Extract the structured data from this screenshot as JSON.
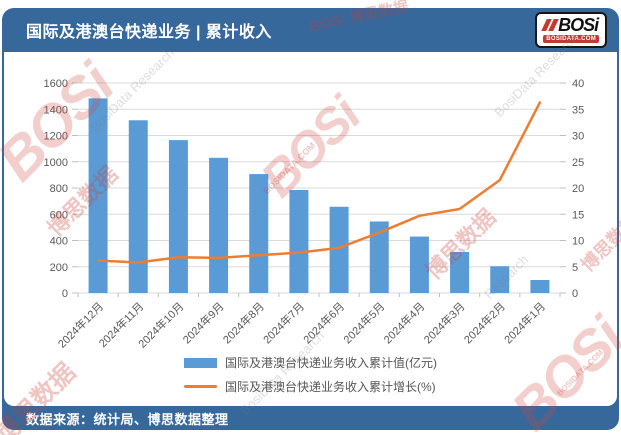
{
  "header": {
    "title": "国际及港澳台快递业务 | 累计收入",
    "logo_text": "BOSi",
    "logo_subtext": "BOSIDATA.COM"
  },
  "legend": {
    "bar_label": "国际及港澳台快递业务收入累计值(亿元)",
    "line_label": "国际及港澳台快递业务收入累计增长(%)"
  },
  "footer": {
    "source": "数据来源：统计局、博思数据整理"
  },
  "colors": {
    "bar": "#5B9BD5",
    "line": "#ED7D31",
    "frame_blue": "#36689B",
    "gridline": "#D9D9D9",
    "tick": "#BFBFBF",
    "axis_text": "#595959"
  },
  "watermarks": [
    "BOSi",
    "博思数据",
    "BosiData Research",
    "BOSi",
    "BOSIDATA.COM",
    "BosiData Research",
    "博思数据",
    "Research",
    "BOSi",
    "BOSIDATA.COM",
    "博思数据",
    "BosiData Research",
    "BOSi 博思数据",
    "博思数据"
  ],
  "chart_data": {
    "type": "bar",
    "subtype": "bar+line combo, dual axis",
    "title": "国际及港澳台快递业务 | 累计收入",
    "categories": [
      "2024年12月",
      "2024年11月",
      "2024年10月",
      "2024年9月",
      "2024年8月",
      "2024年7月",
      "2024年6月",
      "2024年5月",
      "2024年4月",
      "2024年3月",
      "2024年2月",
      "2024年1月"
    ],
    "series": [
      {
        "name": "国际及港澳台快递业务收入累计值(亿元)",
        "type": "bar",
        "axis": "left",
        "values": [
          1483,
          1316,
          1165,
          1030,
          906,
          785,
          657,
          545,
          430,
          313,
          204,
          99
        ]
      },
      {
        "name": "国际及港澳台快递业务收入累计增长(%)",
        "type": "line",
        "axis": "right",
        "values": [
          6.2,
          5.8,
          6.8,
          6.7,
          7.2,
          7.7,
          8.6,
          11.5,
          14.7,
          16.0,
          21.5,
          36.3
        ]
      }
    ],
    "left_axis": {
      "min": 0,
      "max": 1600,
      "step": 200
    },
    "right_axis": {
      "min": 0,
      "max": 40,
      "step": 5
    },
    "grid": true,
    "legend_position": "bottom"
  }
}
